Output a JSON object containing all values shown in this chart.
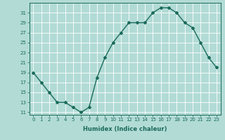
{
  "x": [
    0,
    1,
    2,
    3,
    4,
    5,
    6,
    7,
    8,
    9,
    10,
    11,
    12,
    13,
    14,
    15,
    16,
    17,
    18,
    19,
    20,
    21,
    22,
    23
  ],
  "y": [
    19,
    17,
    15,
    13,
    13,
    12,
    11,
    12,
    18,
    22,
    25,
    27,
    29,
    29,
    29,
    31,
    32,
    32,
    31,
    29,
    28,
    25,
    22,
    20
  ],
  "line_color": "#1a6b5a",
  "bg_color": "#b2dbd6",
  "grid_color": "#ffffff",
  "marker": "D",
  "marker_size": 2.0,
  "xlabel": "Humidex (Indice chaleur)",
  "yticks": [
    11,
    13,
    15,
    17,
    19,
    21,
    23,
    25,
    27,
    29,
    31
  ],
  "xticks": [
    0,
    1,
    2,
    3,
    4,
    5,
    6,
    7,
    8,
    9,
    10,
    11,
    12,
    13,
    14,
    15,
    16,
    17,
    18,
    19,
    20,
    21,
    22,
    23
  ],
  "ylim": [
    10.5,
    33
  ],
  "xlim": [
    -0.5,
    23.5
  ],
  "tick_fontsize": 5.0,
  "xlabel_fontsize": 6.0,
  "linewidth": 1.0,
  "spine_color": "#1a6b5a"
}
